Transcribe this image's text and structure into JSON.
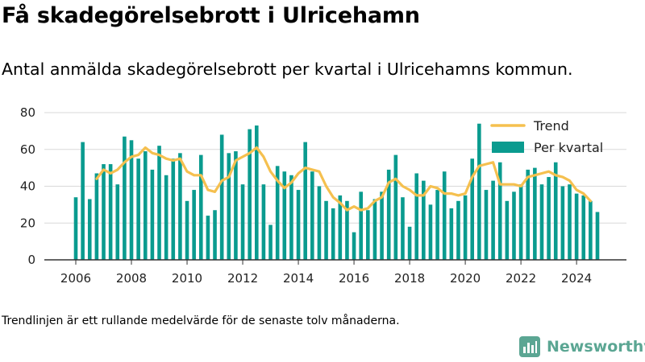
{
  "title": "Få skadegörelsebrott i Ulricehamn",
  "subtitle": "Antal anmälda skadegörelsebrott per kvartal i Ulricehamns kommun.",
  "footnote": "Trendlinjen är ett rullande medelvärde för de senaste tolv månaderna.",
  "brand": {
    "name": "Newsworthy",
    "color": "#5ba693",
    "icon": "bar-chart-logo-icon"
  },
  "colors": {
    "bar": "#0a9b8f",
    "trend": "#f5c04f",
    "grid": "#d9d9d9",
    "axis": "#333333"
  },
  "chart_data": {
    "type": "bar",
    "ylim": [
      0,
      80
    ],
    "yticks": [
      0,
      20,
      40,
      60,
      80
    ],
    "xticks": [
      "2006",
      "2008",
      "2010",
      "2012",
      "2014",
      "2016",
      "2018",
      "2020",
      "2022",
      "2024"
    ],
    "grid": true,
    "legend_position": "top-right",
    "x_start": "2006 Q1",
    "categories": [
      "2006 Q1",
      "2006 Q2",
      "2006 Q3",
      "2006 Q4",
      "2007 Q1",
      "2007 Q2",
      "2007 Q3",
      "2007 Q4",
      "2008 Q1",
      "2008 Q2",
      "2008 Q3",
      "2008 Q4",
      "2009 Q1",
      "2009 Q2",
      "2009 Q3",
      "2009 Q4",
      "2010 Q1",
      "2010 Q2",
      "2010 Q3",
      "2010 Q4",
      "2011 Q1",
      "2011 Q2",
      "2011 Q3",
      "2011 Q4",
      "2012 Q1",
      "2012 Q2",
      "2012 Q3",
      "2012 Q4",
      "2013 Q1",
      "2013 Q2",
      "2013 Q3",
      "2013 Q4",
      "2014 Q1",
      "2014 Q2",
      "2014 Q3",
      "2014 Q4",
      "2015 Q1",
      "2015 Q2",
      "2015 Q3",
      "2015 Q4",
      "2016 Q1",
      "2016 Q2",
      "2016 Q3",
      "2016 Q4",
      "2017 Q1",
      "2017 Q2",
      "2017 Q3",
      "2017 Q4",
      "2018 Q1",
      "2018 Q2",
      "2018 Q3",
      "2018 Q4",
      "2019 Q1",
      "2019 Q2",
      "2019 Q3",
      "2019 Q4",
      "2020 Q1",
      "2020 Q2",
      "2020 Q3",
      "2020 Q4",
      "2021 Q1",
      "2021 Q2",
      "2021 Q3",
      "2021 Q4",
      "2022 Q1",
      "2022 Q2",
      "2022 Q3",
      "2022 Q4",
      "2023 Q1",
      "2023 Q2",
      "2023 Q3",
      "2023 Q4",
      "2024 Q1",
      "2024 Q2",
      "2024 Q3",
      "2024 Q4"
    ],
    "series": [
      {
        "name": "Per kvartal",
        "type": "bar",
        "values": [
          34,
          64,
          33,
          47,
          52,
          52,
          41,
          67,
          65,
          55,
          59,
          49,
          62,
          46,
          55,
          58,
          32,
          38,
          57,
          24,
          27,
          68,
          58,
          59,
          41,
          71,
          73,
          41,
          19,
          51,
          48,
          46,
          38,
          64,
          48,
          40,
          32,
          28,
          35,
          32,
          15,
          37,
          27,
          33,
          37,
          49,
          57,
          34,
          18,
          47,
          43,
          30,
          38,
          48,
          28,
          32,
          35,
          55,
          74,
          38,
          43,
          53,
          32,
          37,
          41,
          49,
          50,
          41,
          45,
          53,
          40,
          41,
          36,
          35,
          32,
          26
        ]
      },
      {
        "name": "Trend",
        "type": "line",
        "values": [
          null,
          null,
          null,
          44,
          49,
          47,
          49,
          53,
          56,
          57,
          61,
          58,
          57,
          55,
          54,
          55,
          48,
          46,
          46,
          38,
          37,
          43,
          45,
          54,
          56,
          58,
          61,
          56,
          48,
          43,
          39,
          42,
          47,
          50,
          49,
          48,
          40,
          34,
          31,
          27,
          29,
          27,
          28,
          32,
          34,
          42,
          44,
          40,
          38,
          35,
          35,
          40,
          39,
          36,
          36,
          35,
          36,
          45,
          51,
          52,
          53,
          41,
          41,
          41,
          40,
          45,
          46,
          47,
          48,
          46,
          45,
          43,
          38,
          36,
          32,
          null
        ]
      }
    ]
  }
}
